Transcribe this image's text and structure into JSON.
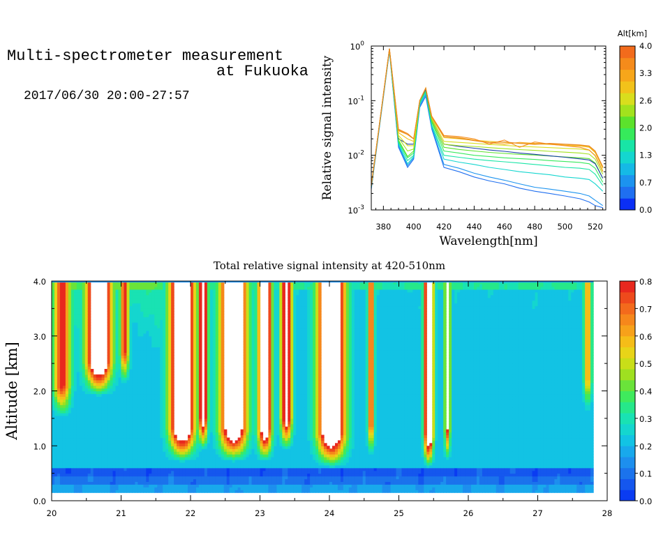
{
  "header": {
    "title_line1": "Multi-spectrometer measurement",
    "title_line2": "at Fukuoka",
    "date_range": "2017/06/30 20:00-27:57"
  },
  "chart_data": [
    {
      "type": "line",
      "title": "",
      "xlabel": "Wavelength[nm]",
      "ylabel": "Relative signal intensity",
      "yscale": "log",
      "xlim": [
        372,
        527
      ],
      "ylim": [
        0.001,
        1
      ],
      "x_ticks": [
        380,
        400,
        420,
        440,
        460,
        480,
        500,
        520
      ],
      "y_ticks": [
        {
          "value": 0.001,
          "base": "10",
          "exp": "-3"
        },
        {
          "value": 0.01,
          "base": "10",
          "exp": "-2"
        },
        {
          "value": 0.1,
          "base": "10",
          "exp": "-1"
        },
        {
          "value": 1,
          "base": "10",
          "exp": "0"
        }
      ],
      "colorbar": {
        "label": "Alt[km]",
        "ticks": [
          "0.0",
          "0.7",
          "1.3",
          "2.0",
          "2.6",
          "3.3",
          "4.0"
        ],
        "colors": [
          "#0b2ff5",
          "#1f6ff0",
          "#1c93ef",
          "#15b9e6",
          "#14d6cf",
          "#18e5a6",
          "#36ea5b",
          "#5ce22c",
          "#a2e21d",
          "#d9de1d",
          "#f2c21a",
          "#f7a61a",
          "#f58b1b",
          "#f26b1c"
        ]
      },
      "x": [
        372,
        384,
        390,
        396,
        400,
        404,
        408,
        412,
        420,
        430,
        440,
        450,
        460,
        470,
        480,
        490,
        500,
        510,
        516,
        520,
        525
      ],
      "series": [
        {
          "altitude_km": 0.3,
          "color": "#1f6ff0",
          "values": [
            0.0024,
            0.8,
            0.014,
            0.006,
            0.0085,
            0.075,
            0.12,
            0.03,
            0.006,
            0.005,
            0.004,
            0.0034,
            0.003,
            0.0025,
            0.0022,
            0.002,
            0.0018,
            0.0016,
            0.0014,
            0.0012,
            0.0011
          ]
        },
        {
          "altitude_km": 0.6,
          "color": "#1c93ef",
          "values": [
            0.0025,
            0.82,
            0.015,
            0.0065,
            0.009,
            0.08,
            0.13,
            0.032,
            0.0068,
            0.0058,
            0.0047,
            0.004,
            0.0035,
            0.003,
            0.0026,
            0.0024,
            0.0022,
            0.002,
            0.0018,
            0.0015,
            0.0012
          ]
        },
        {
          "altitude_km": 1.0,
          "color": "#14d6cf",
          "values": [
            0.0026,
            0.84,
            0.016,
            0.007,
            0.0095,
            0.085,
            0.14,
            0.034,
            0.0085,
            0.0075,
            0.0068,
            0.006,
            0.0055,
            0.005,
            0.0047,
            0.0044,
            0.004,
            0.0038,
            0.0036,
            0.003,
            0.0022
          ]
        },
        {
          "altitude_km": 1.3,
          "color": "#18e5a6",
          "values": [
            0.0026,
            0.85,
            0.017,
            0.008,
            0.01,
            0.09,
            0.15,
            0.036,
            0.01,
            0.0092,
            0.0085,
            0.008,
            0.0076,
            0.0072,
            0.0068,
            0.0064,
            0.006,
            0.0058,
            0.0055,
            0.0045,
            0.0028
          ]
        },
        {
          "altitude_km": 1.6,
          "color": "#36ea5b",
          "values": [
            0.0027,
            0.86,
            0.018,
            0.009,
            0.011,
            0.095,
            0.15,
            0.04,
            0.012,
            0.011,
            0.01,
            0.0095,
            0.009,
            0.0087,
            0.0084,
            0.008,
            0.0077,
            0.0074,
            0.007,
            0.0058,
            0.0032
          ]
        },
        {
          "altitude_km": 2.0,
          "color": "#5ce22c",
          "values": [
            0.0027,
            0.87,
            0.019,
            0.0095,
            0.012,
            0.1,
            0.16,
            0.042,
            0.014,
            0.0128,
            0.012,
            0.0113,
            0.0108,
            0.0104,
            0.0101,
            0.0097,
            0.0093,
            0.009,
            0.0087,
            0.0072,
            0.0038
          ]
        },
        {
          "altitude_km": 2.0,
          "color": "#1b3fa8",
          "values": [
            0.0027,
            0.87,
            0.02,
            0.016,
            0.016,
            0.1,
            0.16,
            0.045,
            0.016,
            0.0145,
            0.0135,
            0.0125,
            0.0118,
            0.011,
            0.0104,
            0.0098,
            0.0092,
            0.0086,
            0.0082,
            0.007,
            0.0038
          ]
        },
        {
          "altitude_km": 2.4,
          "color": "#a2e21d",
          "values": [
            0.0028,
            0.88,
            0.021,
            0.012,
            0.013,
            0.1,
            0.17,
            0.045,
            0.016,
            0.015,
            0.0145,
            0.0138,
            0.0132,
            0.0127,
            0.0123,
            0.0118,
            0.0114,
            0.011,
            0.0105,
            0.0085,
            0.0045
          ]
        },
        {
          "altitude_km": 2.8,
          "color": "#d9de1d",
          "values": [
            0.0028,
            0.88,
            0.023,
            0.015,
            0.015,
            0.1,
            0.17,
            0.048,
            0.018,
            0.0172,
            0.0165,
            0.0158,
            0.0152,
            0.0146,
            0.0142,
            0.0138,
            0.0134,
            0.013,
            0.0124,
            0.01,
            0.0052
          ]
        },
        {
          "altitude_km": 3.1,
          "color": "#f2c21a",
          "values": [
            0.0028,
            0.88,
            0.026,
            0.02,
            0.018,
            0.1,
            0.17,
            0.05,
            0.021,
            0.02,
            0.0188,
            0.018,
            0.0172,
            0.0165,
            0.0162,
            0.0158,
            0.0152,
            0.0148,
            0.014,
            0.0112,
            0.0058
          ]
        },
        {
          "altitude_km": 3.5,
          "color": "#f7a61a",
          "values": [
            0.0028,
            0.89,
            0.028,
            0.024,
            0.02,
            0.1,
            0.17,
            0.05,
            0.022,
            0.021,
            0.019,
            0.017,
            0.016,
            0.0172,
            0.0165,
            0.0162,
            0.0158,
            0.0152,
            0.0145,
            0.0115,
            0.006
          ]
        },
        {
          "altitude_km": 3.8,
          "color": "#f58b1b",
          "values": [
            0.0028,
            0.9,
            0.03,
            0.025,
            0.02,
            0.1,
            0.17,
            0.052,
            0.023,
            0.022,
            0.02,
            0.016,
            0.019,
            0.014,
            0.0175,
            0.016,
            0.015,
            0.014,
            0.0125,
            0.0098,
            0.005
          ]
        },
        {
          "altitude_km": 3.9,
          "color": "#e98a24",
          "values": [
            0.0028,
            0.9,
            0.029,
            0.024,
            0.02,
            0.1,
            0.17,
            0.05,
            0.022,
            0.0205,
            0.0185,
            0.017,
            0.0175,
            0.0165,
            0.0158,
            0.0165,
            0.016,
            0.0155,
            0.0148,
            0.012,
            0.0062
          ]
        }
      ]
    },
    {
      "type": "heatmap",
      "title": "Total relative signal intensity at 420-510nm",
      "xlabel": "",
      "ylabel": "Altitude [km]",
      "xlim": [
        20,
        28
      ],
      "ylim": [
        0,
        4
      ],
      "x_ticks": [
        "20",
        "21",
        "22",
        "23",
        "24",
        "25",
        "26",
        "27",
        "28"
      ],
      "y_ticks": [
        "0.0",
        "1.0",
        "2.0",
        "3.0",
        "4.0"
      ],
      "colorbar": {
        "ticks": [
          "0.0",
          "0.1",
          "0.2",
          "0.3",
          "0.4",
          "0.5",
          "0.6",
          "0.7",
          "0.8"
        ],
        "range": [
          0,
          0.8
        ],
        "colors": [
          "#0a3cf2",
          "#1557ee",
          "#1b73ec",
          "#1d8fee",
          "#18a9ec",
          "#12c3e4",
          "#14d6cf",
          "#19e2b3",
          "#26e88a",
          "#3fea5d",
          "#6ae33a",
          "#9fe020",
          "#c9de18",
          "#e8d418",
          "#f5bd18",
          "#f7a11a",
          "#f6871b",
          "#f36a1c",
          "#ee4a1c",
          "#e8281e"
        ]
      },
      "data_extent": {
        "x": [
          20.0,
          27.8
        ],
        "y": [
          0.15,
          4.0
        ]
      },
      "plumes": [
        {
          "center": 20.15,
          "width": 0.15,
          "base_km": 2.1,
          "peak": 0.62
        },
        {
          "center": 20.68,
          "width": 0.22,
          "base_km": 2.5,
          "peak": 1.0
        },
        {
          "center": 21.05,
          "width": 0.08,
          "base_km": 2.7,
          "peak": 0.58
        },
        {
          "center": 21.88,
          "width": 0.22,
          "base_km": 1.3,
          "peak": 1.0
        },
        {
          "center": 22.18,
          "width": 0.08,
          "base_km": 1.5,
          "peak": 0.85
        },
        {
          "center": 22.62,
          "width": 0.23,
          "base_km": 1.3,
          "peak": 1.0
        },
        {
          "center": 23.07,
          "width": 0.12,
          "base_km": 1.3,
          "peak": 0.92
        },
        {
          "center": 23.38,
          "width": 0.1,
          "base_km": 1.5,
          "peak": 0.8
        },
        {
          "center": 24.03,
          "width": 0.24,
          "base_km": 1.2,
          "peak": 1.0
        },
        {
          "center": 24.6,
          "width": 0.06,
          "base_km": 1.4,
          "peak": 0.55
        },
        {
          "center": 25.43,
          "width": 0.08,
          "base_km": 1.2,
          "peak": 1.0
        },
        {
          "center": 25.7,
          "width": 0.05,
          "base_km": 1.3,
          "peak": 0.62
        },
        {
          "center": 27.72,
          "width": 0.07,
          "base_km": 2.2,
          "peak": 0.42
        }
      ]
    }
  ]
}
